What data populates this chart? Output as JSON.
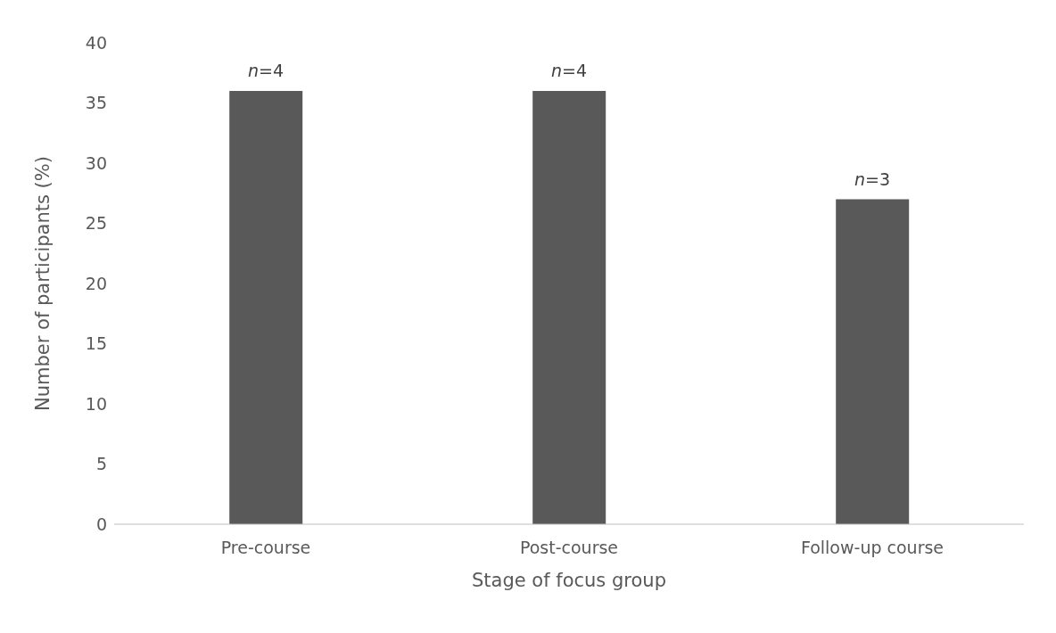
{
  "chart_data": {
    "type": "bar",
    "xlabel": "Stage of focus group",
    "ylabel": "Number of participants (%)",
    "categories": [
      "Pre-course",
      "Post-course",
      "Follow-up course"
    ],
    "values": [
      36,
      36,
      27
    ],
    "annotations": [
      {
        "text": "n=4",
        "x": "Pre-course",
        "y": 36
      },
      {
        "text": "n=4",
        "x": "Post-course",
        "y": 36
      },
      {
        "text": "n=3",
        "x": "Follow-up course",
        "y": 27
      }
    ],
    "color": "#595959",
    "ylim": [
      0,
      40
    ],
    "yticks": [
      0,
      5,
      10,
      15,
      20,
      25,
      30,
      35,
      40
    ],
    "grid": false,
    "legend": false
  }
}
